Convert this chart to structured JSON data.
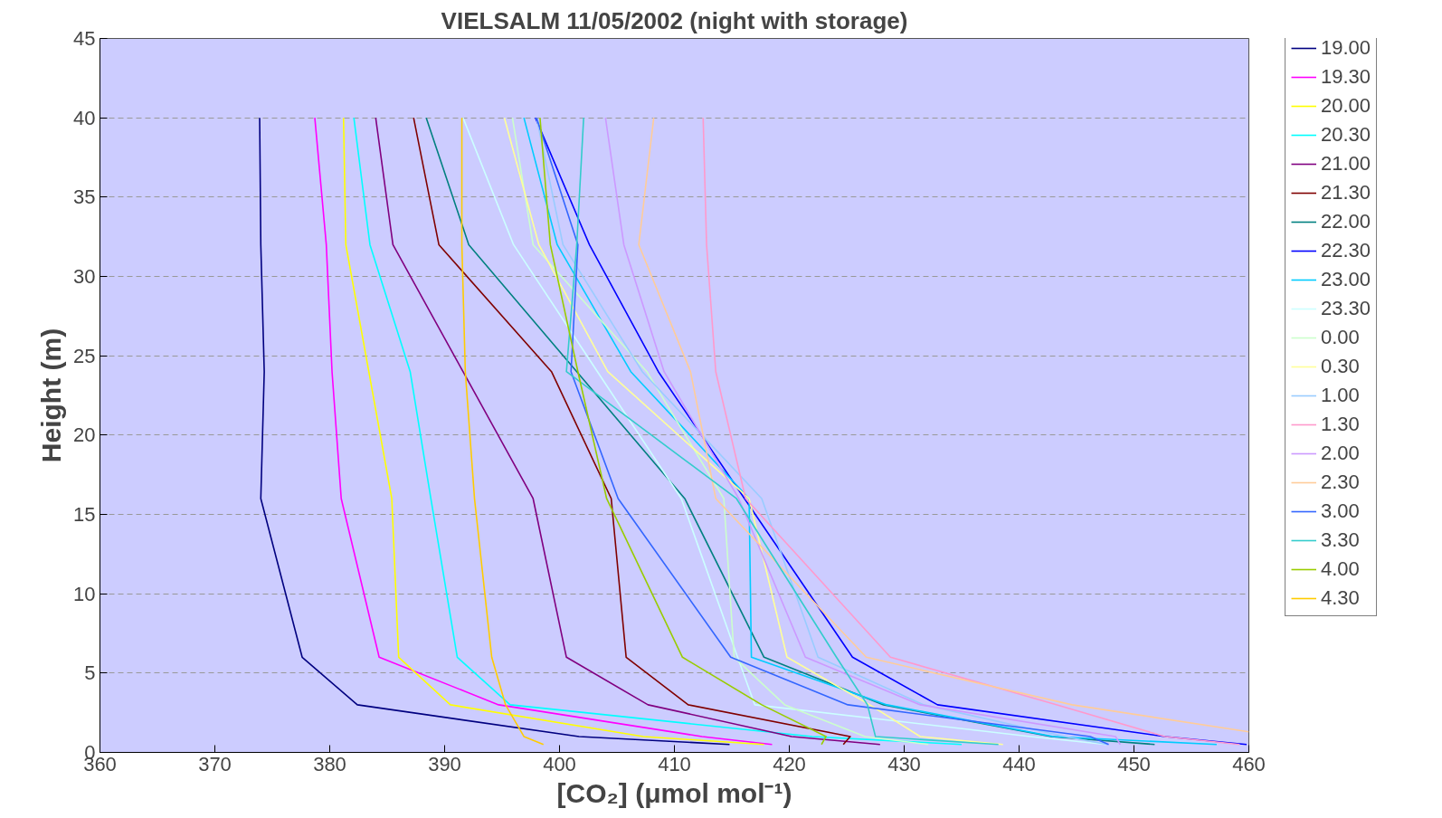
{
  "chart_data": {
    "type": "line",
    "title": "VIELSALM 11/05/2002 (night with storage)",
    "xlabel": "[CO₂] (μmol mol⁻¹)",
    "ylabel": "Height (m)",
    "xlim": [
      360,
      460
    ],
    "xticks": [
      360,
      370,
      380,
      390,
      400,
      410,
      420,
      430,
      440,
      450,
      460
    ],
    "ylim": [
      0,
      45
    ],
    "yticks": [
      0,
      5,
      10,
      15,
      20,
      25,
      30,
      35,
      40,
      45
    ],
    "grid": "y",
    "legend": "right",
    "line_style": "solid",
    "series": [
      {
        "name": "19.00",
        "color": "#000080",
        "values": [
          0.5,
          1,
          3,
          6,
          16,
          24,
          32,
          40
        ],
        "x": [
          414.8,
          401.7,
          382.4,
          377.6,
          374.0,
          374.3,
          374.0,
          373.9
        ]
      },
      {
        "name": "19.30",
        "color": "#ff00ff",
        "values": [
          0.5,
          1,
          3,
          6,
          16,
          24,
          32,
          40
        ],
        "x": [
          418.5,
          412.4,
          394.7,
          384.3,
          381.0,
          380.2,
          379.7,
          378.7
        ]
      },
      {
        "name": "20.00",
        "color": "#ffff00",
        "values": [
          0.5,
          1,
          3,
          6,
          16,
          24,
          32,
          40
        ],
        "x": [
          417.8,
          407.3,
          390.5,
          386.0,
          385.4,
          383.4,
          381.4,
          381.2
        ]
      },
      {
        "name": "20.30",
        "color": "#00ffff",
        "values": [
          0.5,
          1,
          3,
          6,
          16,
          24,
          32,
          40
        ],
        "x": [
          435.0,
          422.0,
          395.7,
          391.1,
          388.8,
          387.0,
          383.5,
          382.1
        ]
      },
      {
        "name": "21.00",
        "color": "#800080",
        "values": [
          0.5,
          1,
          3,
          6,
          16,
          24,
          32,
          40
        ],
        "x": [
          427.9,
          420.2,
          407.7,
          400.6,
          397.7,
          391.6,
          385.5,
          384.0
        ]
      },
      {
        "name": "21.30",
        "color": "#800000",
        "values": [
          0.5,
          1,
          3,
          6,
          16,
          24,
          32,
          40
        ],
        "x": [
          424.7,
          425.3,
          411.2,
          405.8,
          404.5,
          399.3,
          389.5,
          387.3
        ]
      },
      {
        "name": "22.00",
        "color": "#008080",
        "values": [
          0.5,
          1,
          3,
          6,
          16,
          24,
          32,
          40
        ],
        "x": [
          451.8,
          442.8,
          428.2,
          417.8,
          410.9,
          401.5,
          392.1,
          388.4
        ]
      },
      {
        "name": "22.30",
        "color": "#0000ff",
        "values": [
          0.5,
          1,
          3,
          6,
          16,
          24,
          32,
          40
        ],
        "x": [
          459.8,
          452.7,
          432.9,
          425.5,
          416.1,
          408.6,
          402.6,
          397.9
        ]
      },
      {
        "name": "23.00",
        "color": "#00ccff",
        "values": [
          0.5,
          1,
          3,
          6,
          16,
          24,
          32,
          40
        ],
        "x": [
          457.2,
          443.0,
          428.5,
          416.7,
          416.5,
          406.2,
          399.8,
          396.9
        ]
      },
      {
        "name": "23.30",
        "color": "#ccffff",
        "values": [
          0.5,
          1,
          3,
          6,
          16,
          24,
          32,
          40
        ],
        "x": [
          447.6,
          441.0,
          417.0,
          415.5,
          410.6,
          403.3,
          396.0,
          391.6
        ]
      },
      {
        "name": "0.00",
        "color": "#ccffcc",
        "values": [
          0.5,
          1,
          3,
          6,
          16,
          24,
          32,
          40
        ],
        "x": [
          432.1,
          426.6,
          419.6,
          415.2,
          414.3,
          407.6,
          397.7,
          395.9
        ]
      },
      {
        "name": "0.30",
        "color": "#ffff99",
        "values": [
          0.5,
          1,
          3,
          6,
          16,
          24,
          32,
          40
        ],
        "x": [
          438.6,
          431.4,
          427.0,
          419.8,
          416.5,
          404.2,
          398.2,
          395.2
        ]
      },
      {
        "name": "1.00",
        "color": "#99ccff",
        "values": [
          0.5,
          1,
          3,
          6,
          16,
          24,
          32,
          40
        ],
        "x": [
          447.7,
          444.0,
          431.7,
          422.5,
          417.6,
          407.2,
          400.3,
          398.0
        ]
      },
      {
        "name": "1.30",
        "color": "#ff99cc",
        "values": [
          0.5,
          1,
          3,
          6,
          16,
          24,
          32,
          40
        ],
        "x": [
          459.2,
          452.7,
          443.3,
          428.8,
          416.2,
          413.6,
          412.8,
          412.5
        ]
      },
      {
        "name": "2.00",
        "color": "#cc99ff",
        "values": [
          0.5,
          1,
          3,
          6,
          16,
          24,
          32,
          40
        ],
        "x": [
          448.8,
          448.4,
          431.4,
          421.4,
          415.6,
          409.1,
          405.6,
          404.0
        ]
      },
      {
        "name": "2.30",
        "color": "#ffcc99",
        "values": [
          1.3,
          3,
          6,
          16,
          24,
          32,
          40
        ],
        "x": [
          460.0,
          444.6,
          426.7,
          413.6,
          411.4,
          406.9,
          408.2
        ]
      },
      {
        "name": "3.00",
        "color": "#3366ff",
        "values": [
          0.5,
          1,
          3,
          6,
          16,
          24,
          32,
          40
        ],
        "x": [
          447.8,
          446.2,
          425.1,
          414.9,
          405.1,
          401.0,
          401.6,
          398.0
        ]
      },
      {
        "name": "3.30",
        "color": "#33cccc",
        "values": [
          0.5,
          1,
          3,
          6,
          16,
          24,
          32,
          40
        ],
        "x": [
          438.2,
          427.5,
          426.8,
          424.1,
          415.4,
          400.6,
          401.5,
          402.1
        ]
      },
      {
        "name": "4.00",
        "color": "#99cc00",
        "values": [
          0.5,
          1,
          3,
          6,
          16,
          24,
          32,
          40
        ],
        "x": [
          422.8,
          423.2,
          417.6,
          410.7,
          404.1,
          401.6,
          399.2,
          398.3
        ]
      },
      {
        "name": "4.30",
        "color": "#ffcc00",
        "values": [
          0.5,
          1,
          3,
          6,
          16,
          24,
          32,
          40
        ],
        "x": [
          398.6,
          396.9,
          395.3,
          394.1,
          392.6,
          391.8,
          391.5,
          391.5
        ]
      }
    ]
  }
}
